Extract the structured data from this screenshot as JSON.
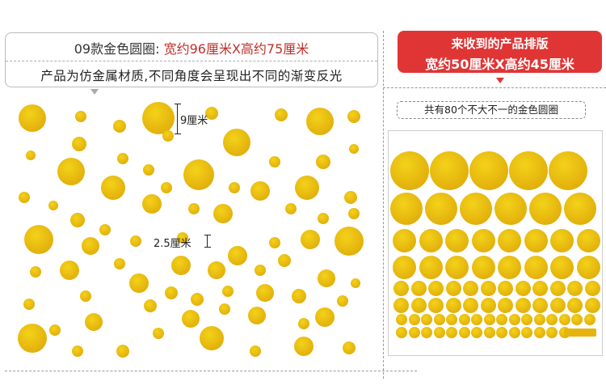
{
  "header": {
    "title_prefix": "09款金色圆圈: ",
    "title_size": "宽约96厘米X高约75厘米",
    "subtitle": "产品为仿金属材质,不同角度会呈现出不同的渐变反光"
  },
  "received": {
    "line1": "来收到的产品排版",
    "line2": "宽约50厘米X高约45厘米"
  },
  "count_label": "共有80个不大不一的金色圆圈",
  "dimensions": {
    "large": "9厘米",
    "small": "2.5厘米"
  },
  "colors": {
    "accent": "#e03535",
    "gold": "#e3b10c",
    "title_red": "#c0302a"
  }
}
